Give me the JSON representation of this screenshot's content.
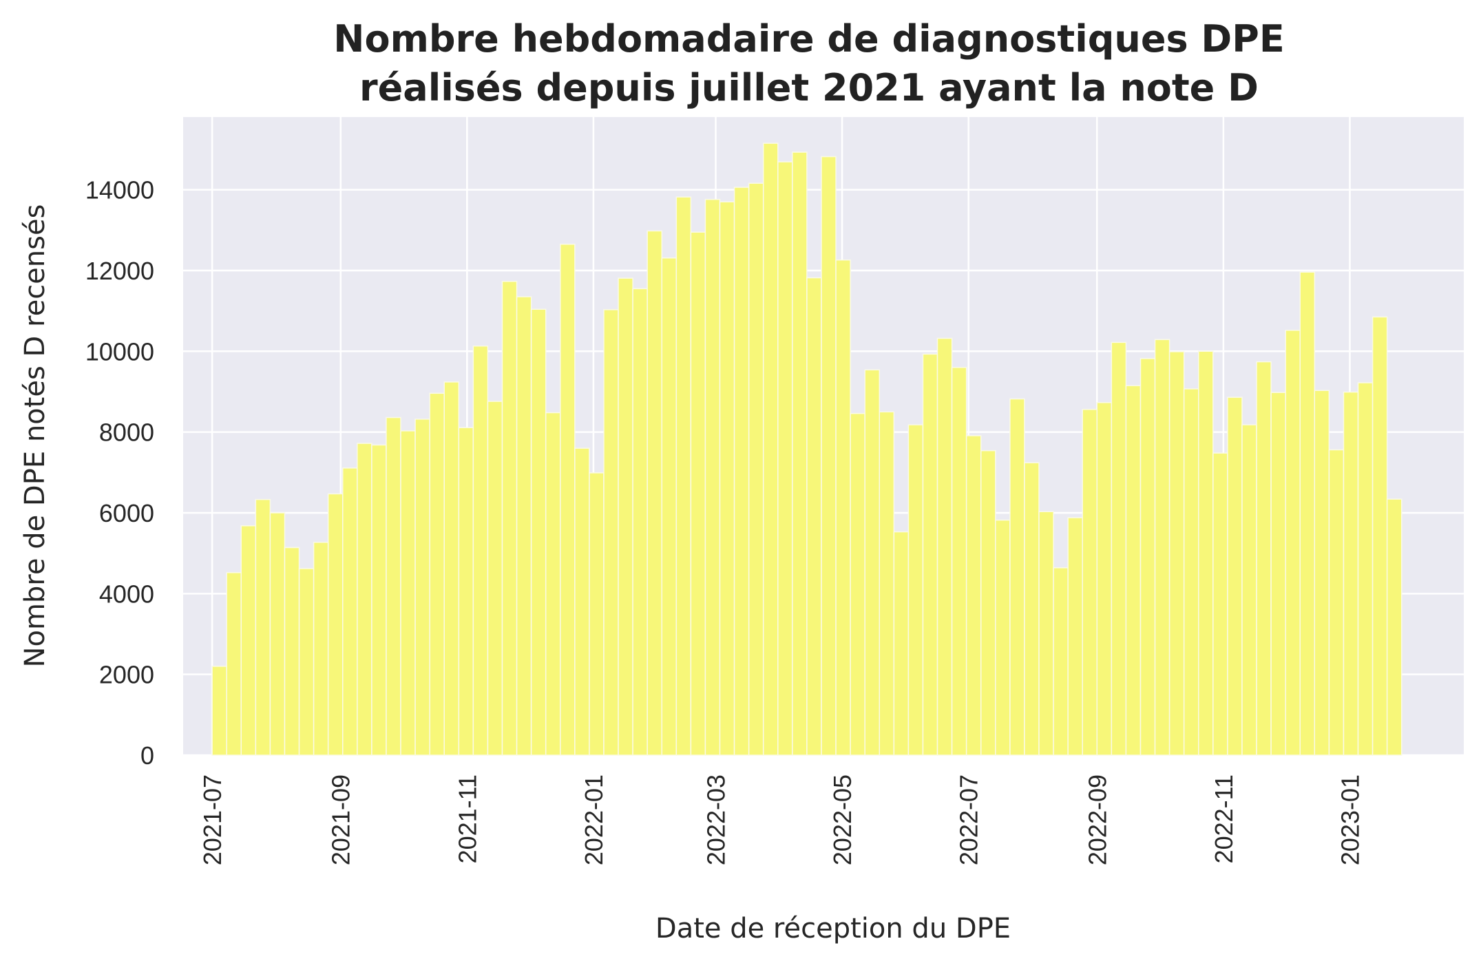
{
  "chart_data": {
    "type": "bar",
    "title_lines": [
      "Nombre hebdomadaire de diagnostiques DPE",
      "réalisés depuis juillet 2021 ayant la note D"
    ],
    "xlabel": "Date de réception du DPE",
    "ylabel": "Nombre de DPE notés D recensés",
    "ylim": [
      0,
      15800
    ],
    "yticks": [
      0,
      2000,
      4000,
      6000,
      8000,
      10000,
      12000,
      14000
    ],
    "xlim": [
      "2021-06-17",
      "2023-02-25"
    ],
    "xticks": [
      "2021-07",
      "2021-09",
      "2021-11",
      "2022-01",
      "2022-03",
      "2022-05",
      "2022-07",
      "2022-09",
      "2022-11",
      "2023-01"
    ],
    "grid": true,
    "bar_color": "#f7f779",
    "background_color": "#eaeaf2",
    "bin_start": "2021-07-01",
    "bin_days": 7,
    "values": [
      2200,
      4520,
      5680,
      6330,
      6000,
      5140,
      4620,
      5270,
      6470,
      7110,
      7720,
      7680,
      8360,
      8030,
      8320,
      8960,
      9240,
      8110,
      10130,
      8760,
      11730,
      11350,
      11040,
      8480,
      12650,
      7600,
      6990,
      11030,
      11810,
      11550,
      12980,
      12310,
      13820,
      12950,
      13760,
      13700,
      14060,
      14160,
      15150,
      14690,
      14930,
      11820,
      14820,
      12260,
      8460,
      9540,
      8500,
      5530,
      8180,
      9930,
      10320,
      9600,
      7910,
      7540,
      5820,
      8820,
      7240,
      6030,
      4640,
      5880,
      8560,
      8730,
      10220,
      9150,
      9820,
      10290,
      9990,
      9070,
      10000,
      7480,
      8860,
      8180,
      9740,
      8980,
      10520,
      11960,
      9030,
      7560,
      8990,
      9220,
      10850,
      6340
    ]
  }
}
